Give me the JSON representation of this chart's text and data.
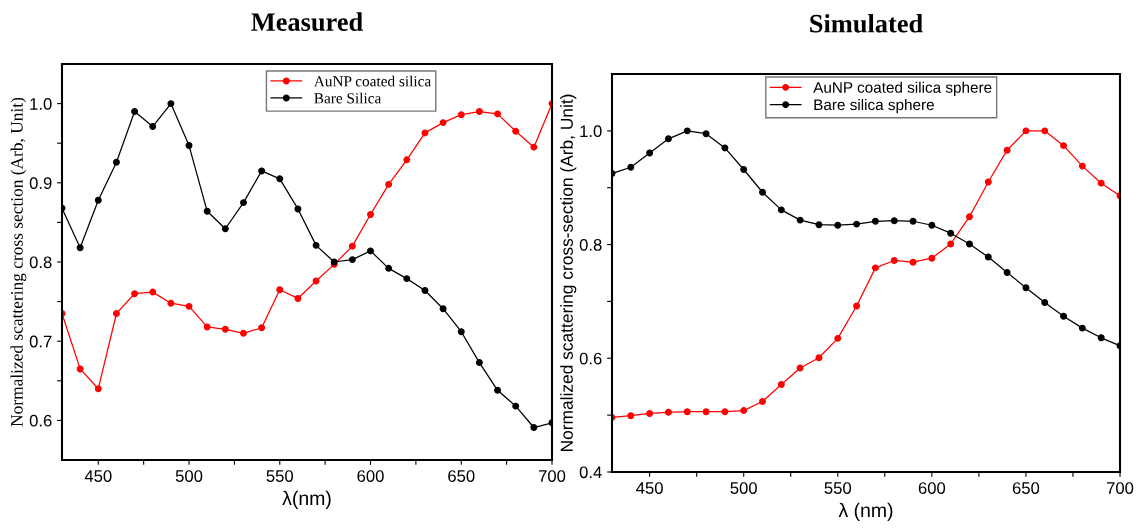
{
  "chart_data": [
    {
      "type": "line",
      "title": "Measured",
      "xlabel": "λ(nm)",
      "ylabel": "Normalized scattering cross section (Arb, Unit)",
      "x": [
        430,
        440,
        450,
        460,
        470,
        480,
        490,
        500,
        510,
        520,
        530,
        540,
        550,
        560,
        570,
        580,
        590,
        600,
        610,
        620,
        630,
        640,
        650,
        660,
        670,
        680,
        690,
        700
      ],
      "series": [
        {
          "name": "AuNP coated silica",
          "color": "#ff0000",
          "values": [
            0.735,
            0.665,
            0.64,
            0.735,
            0.76,
            0.762,
            0.748,
            0.744,
            0.718,
            0.715,
            0.71,
            0.717,
            0.765,
            0.754,
            0.776,
            0.797,
            0.82,
            0.86,
            0.898,
            0.929,
            0.963,
            0.976,
            0.986,
            0.99,
            0.987,
            0.965,
            0.945,
            1.0
          ]
        },
        {
          "name": "Bare Silica",
          "color": "#000000",
          "values": [
            0.868,
            0.818,
            0.878,
            0.926,
            0.99,
            0.971,
            1.0,
            0.947,
            0.864,
            0.842,
            0.875,
            0.915,
            0.905,
            0.867,
            0.821,
            0.8,
            0.803,
            0.814,
            0.792,
            0.779,
            0.764,
            0.741,
            0.712,
            0.673,
            0.638,
            0.618,
            0.591,
            0.597
          ]
        }
      ],
      "xlim": [
        430,
        700
      ],
      "xticks": [
        450,
        {
          "value": 475,
          "label": null
        },
        500,
        {
          "value": 525,
          "label": null
        },
        550,
        {
          "value": 575,
          "label": null
        },
        600,
        {
          "value": 625,
          "label": null
        },
        650,
        {
          "value": 675,
          "label": null
        },
        700
      ],
      "ylim": [
        0.55,
        1.05
      ],
      "yticks": [
        0.6,
        {
          "value": 0.65,
          "label": null
        },
        0.7,
        {
          "value": 0.75,
          "label": null
        },
        0.8,
        {
          "value": 0.85,
          "label": null
        },
        0.9,
        {
          "value": 0.95,
          "label": null
        },
        {
          "value": 1.0,
          "label": "1.0"
        }
      ],
      "marker": "circle",
      "line_style": "solid",
      "legend": "top",
      "grid": false
    },
    {
      "type": "line",
      "title": "Simulated",
      "xlabel": "λ (nm)",
      "ylabel": "Normalized scattering cross-section (Arb, Unit)",
      "x": [
        430,
        440,
        450,
        460,
        470,
        480,
        490,
        500,
        510,
        520,
        530,
        540,
        550,
        560,
        570,
        580,
        590,
        600,
        610,
        620,
        630,
        640,
        650,
        660,
        670,
        680,
        690,
        700
      ],
      "series": [
        {
          "name": "AuNP coated silica sphere",
          "color": "#ff0000",
          "values": [
            0.496,
            0.499,
            0.503,
            0.505,
            0.506,
            0.506,
            0.506,
            0.508,
            0.524,
            0.554,
            0.583,
            0.601,
            0.635,
            0.692,
            0.759,
            0.772,
            0.769,
            0.776,
            0.801,
            0.849,
            0.91,
            0.966,
            1.0,
            1.0,
            0.974,
            0.938,
            0.908,
            0.886
          ]
        },
        {
          "name": "Bare silica sphere",
          "color": "#000000",
          "values": [
            0.925,
            0.936,
            0.961,
            0.986,
            1.0,
            0.995,
            0.97,
            0.932,
            0.892,
            0.861,
            0.843,
            0.835,
            0.834,
            0.836,
            0.841,
            0.842,
            0.841,
            0.834,
            0.82,
            0.801,
            0.778,
            0.751,
            0.724,
            0.698,
            0.674,
            0.653,
            0.636,
            0.622
          ]
        }
      ],
      "xlim": [
        430,
        700
      ],
      "xticks": [
        450,
        {
          "value": 475,
          "label": null
        },
        500,
        {
          "value": 525,
          "label": null
        },
        550,
        {
          "value": 575,
          "label": null
        },
        600,
        {
          "value": 625,
          "label": null
        },
        650,
        {
          "value": 675,
          "label": null
        },
        700
      ],
      "ylim": [
        0.4,
        1.1
      ],
      "yticks": [
        0.4,
        {
          "value": 0.5,
          "label": null
        },
        0.6,
        {
          "value": 0.7,
          "label": null
        },
        0.8,
        {
          "value": 0.9,
          "label": null
        },
        {
          "value": 1.0,
          "label": "1.0"
        }
      ],
      "marker": "circle",
      "line_style": "solid",
      "legend": "top",
      "grid": false
    }
  ]
}
